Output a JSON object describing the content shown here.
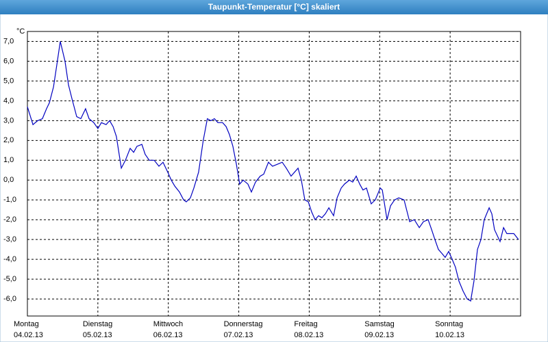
{
  "chart_data": {
    "type": "line",
    "title": "Taupunkt-Temperatur [°C] skaliert",
    "y_unit": "°C",
    "xlim": [
      0,
      168
    ],
    "ylim": [
      -6.86,
      7.5
    ],
    "grid": true,
    "xticks": [
      {
        "value": 0,
        "label": "Montag"
      },
      {
        "value": 24,
        "label": "Dienstag"
      },
      {
        "value": 48,
        "label": "Mittwoch"
      },
      {
        "value": 72,
        "label": "Donnerstag"
      },
      {
        "value": 96,
        "label": "Freitag"
      },
      {
        "value": 120,
        "label": "Samstag"
      },
      {
        "value": 144,
        "label": "Sonntag"
      }
    ],
    "xtick_dates": [
      "04.02.13",
      "05.02.13",
      "06.02.13",
      "07.02.13",
      "08.02.13",
      "09.02.13",
      "10.02.13"
    ],
    "yticks": [
      {
        "value": 7,
        "label": "7,0"
      },
      {
        "value": 6,
        "label": "6,0"
      },
      {
        "value": 5,
        "label": "5,0"
      },
      {
        "value": 4,
        "label": "4,0"
      },
      {
        "value": 3,
        "label": "3,0"
      },
      {
        "value": 2,
        "label": "2,0"
      },
      {
        "value": 1,
        "label": "1,0"
      },
      {
        "value": 0,
        "label": "0,0"
      },
      {
        "value": -1,
        "label": "-1,0"
      },
      {
        "value": -2,
        "label": "-2,0"
      },
      {
        "value": -3,
        "label": "-3,0"
      },
      {
        "value": -4,
        "label": "-4,0"
      },
      {
        "value": -5,
        "label": "-5,0"
      },
      {
        "value": -6,
        "label": "-6,0"
      }
    ],
    "color": "#0000c0",
    "x": [
      0,
      1.9,
      3.5,
      5.1,
      6.5,
      7.5,
      8.9,
      10,
      11.2,
      12.8,
      14,
      15.2,
      16.8,
      18.2,
      19.8,
      21,
      22.6,
      24,
      25.2,
      26.8,
      28,
      29.2,
      30.3,
      32,
      33.4,
      35,
      36.2,
      37.3,
      39,
      40.1,
      41.5,
      43.2,
      44.8,
      46.2,
      47.8,
      49,
      50.2,
      51.8,
      53.2,
      54.1,
      55.5,
      56.7,
      58.3,
      59.9,
      61.3,
      62.5,
      63.7,
      64.9,
      66.5,
      67.7,
      68.8,
      70,
      71.2,
      72.3,
      73.5,
      75.1,
      76.3,
      77.7,
      79.3,
      80.5,
      82.1,
      83.5,
      85.2,
      86.8,
      88.2,
      89.8,
      91,
      92.2,
      93.3,
      94.5,
      95.7,
      96.8,
      98,
      99.2,
      100.3,
      101.5,
      102.7,
      104.3,
      105.5,
      106.9,
      108,
      109.7,
      110.8,
      112,
      113.2,
      114.3,
      115.5,
      117.1,
      118.5,
      120.2,
      120.9,
      122.5,
      123.7,
      125.1,
      126.5,
      128.3,
      130.2,
      131.8,
      133.5,
      134.9,
      136.5,
      137.7,
      138.8,
      140,
      141.2,
      142.3,
      143.5,
      144.7,
      145.8,
      147,
      148.4,
      149.8,
      151,
      152.1,
      153.3,
      154.5,
      155.6,
      157.3,
      158.2,
      159.1,
      161,
      162.2,
      163.3,
      165.7,
      167.3
    ],
    "values": [
      3.7,
      2.8,
      3.0,
      3.1,
      3.6,
      3.9,
      4.7,
      5.8,
      7.0,
      6.0,
      4.8,
      4.1,
      3.2,
      3.1,
      3.6,
      3.1,
      2.9,
      2.6,
      2.9,
      2.8,
      3.0,
      2.7,
      2.2,
      0.6,
      1.0,
      1.6,
      1.4,
      1.7,
      1.8,
      1.3,
      1.0,
      1.0,
      0.7,
      0.9,
      0.4,
      0.0,
      -0.3,
      -0.6,
      -1.0,
      -1.1,
      -0.9,
      -0.4,
      0.4,
      2.0,
      3.1,
      3.0,
      3.1,
      2.9,
      2.9,
      2.7,
      2.3,
      1.7,
      0.8,
      -0.2,
      0.0,
      -0.2,
      -0.6,
      -0.1,
      0.2,
      0.3,
      0.9,
      0.7,
      0.8,
      0.9,
      0.6,
      0.2,
      0.4,
      0.6,
      0.0,
      -1.0,
      -1.1,
      -1.6,
      -2.0,
      -1.8,
      -1.9,
      -1.7,
      -1.4,
      -1.8,
      -0.9,
      -0.4,
      -0.2,
      0.0,
      -0.1,
      0.2,
      -0.2,
      -0.5,
      -0.4,
      -1.2,
      -1.0,
      -0.4,
      -0.5,
      -2.0,
      -1.3,
      -1.0,
      -0.9,
      -1.0,
      -2.1,
      -2.0,
      -2.4,
      -2.1,
      -2.0,
      -2.5,
      -3.0,
      -3.5,
      -3.7,
      -3.9,
      -3.6,
      -4.0,
      -4.4,
      -5.1,
      -5.6,
      -6.0,
      -6.1,
      -5.1,
      -3.5,
      -3.0,
      -2.0,
      -1.4,
      -1.7,
      -2.5,
      -3.1,
      -2.4,
      -2.7,
      -2.7,
      -3.0
    ]
  }
}
